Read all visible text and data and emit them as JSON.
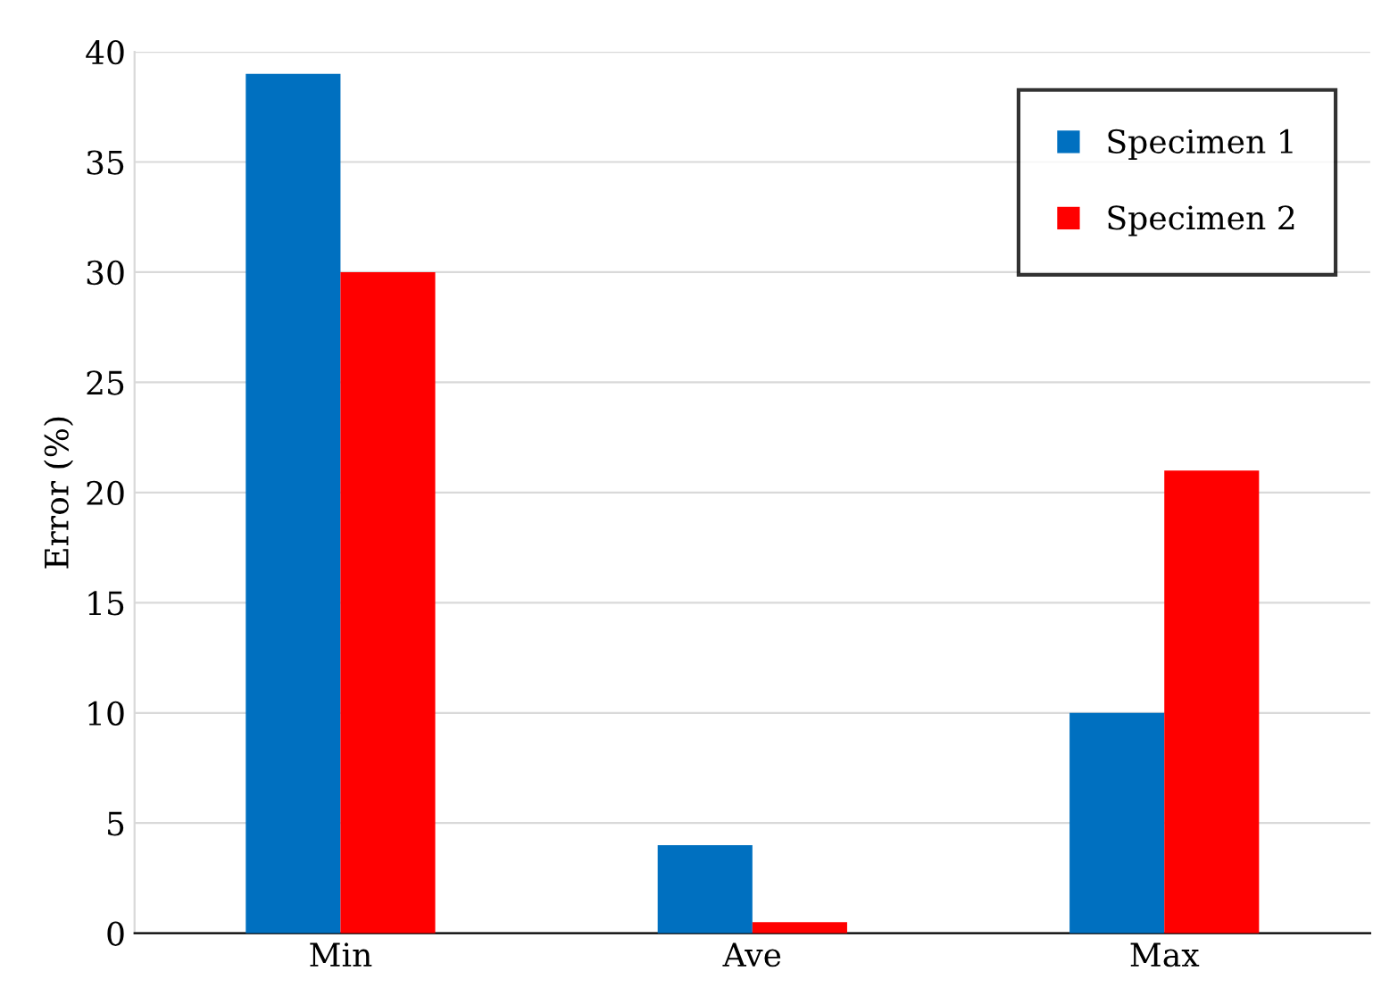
{
  "chart_data": {
    "type": "bar",
    "ylabel": "Error (%)",
    "categories": [
      "Min",
      "Ave",
      "Max"
    ],
    "series": [
      {
        "name": "Specimen 1",
        "color": "#0070c0",
        "values": [
          39,
          4,
          10
        ]
      },
      {
        "name": "Specimen 2",
        "color": "#ff0000",
        "values": [
          30,
          0.5,
          21
        ]
      }
    ],
    "ylim": [
      0,
      40
    ],
    "yticks": [
      0,
      5,
      10,
      15,
      20,
      25,
      30,
      35,
      40
    ],
    "grid": "y",
    "legend": "top right"
  }
}
